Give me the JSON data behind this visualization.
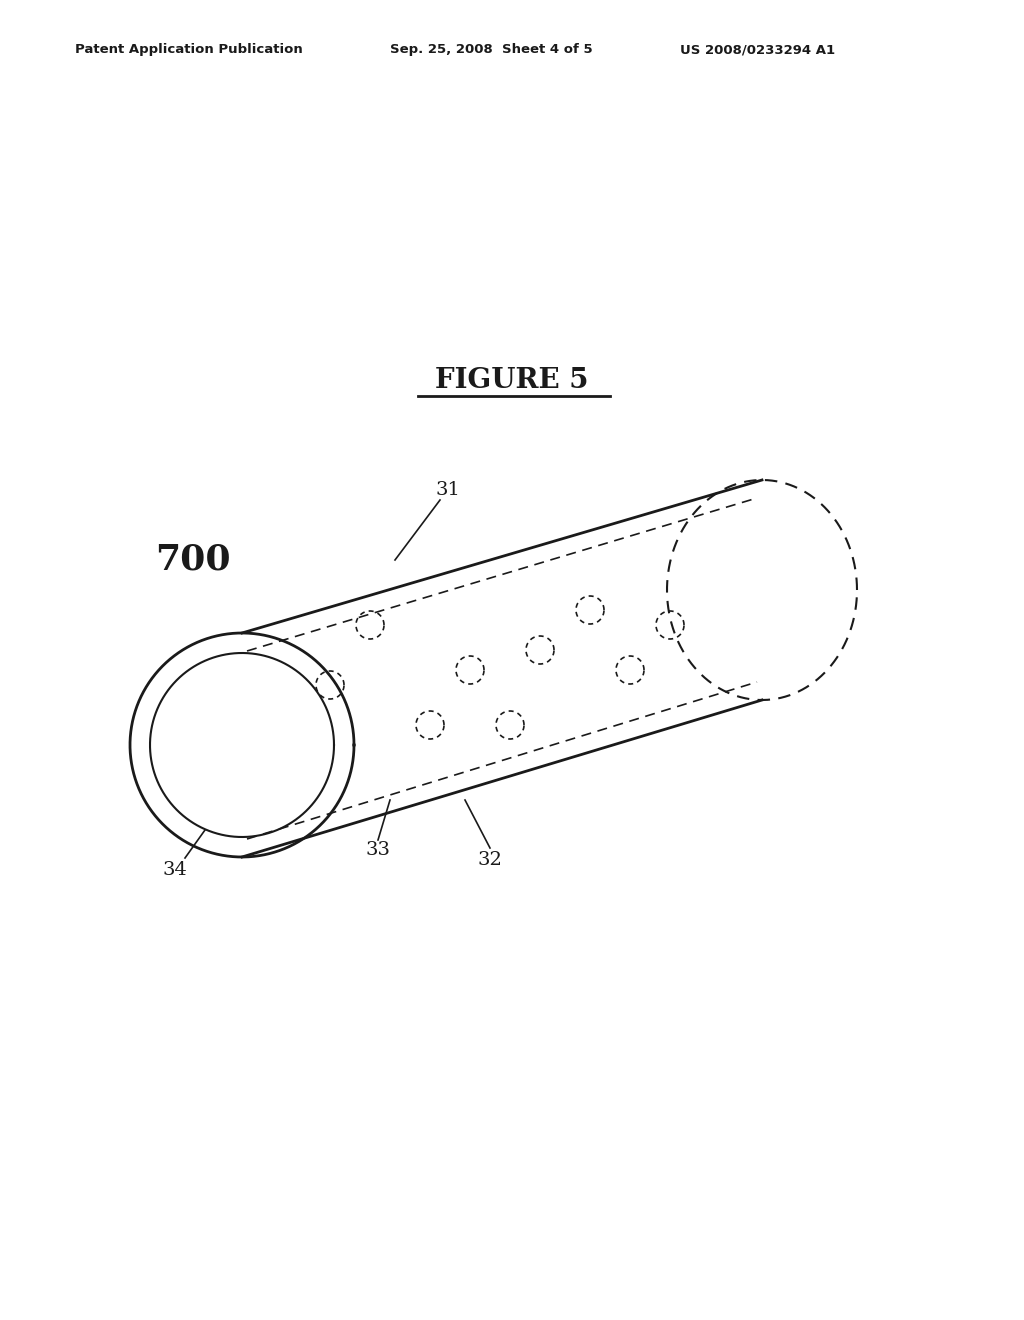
{
  "title": "FIGURE 5",
  "header_left": "Patent Application Publication",
  "header_mid": "Sep. 25, 2008  Sheet 4 of 5",
  "header_right": "US 2008/0233294 A1",
  "label_700": "700",
  "label_31": "31",
  "label_32": "32",
  "label_33": "33",
  "label_34": "34",
  "bg_color": "#ffffff",
  "line_color": "#1a1a1a",
  "fig_width": 10.24,
  "fig_height": 13.2,
  "dpi": 100
}
